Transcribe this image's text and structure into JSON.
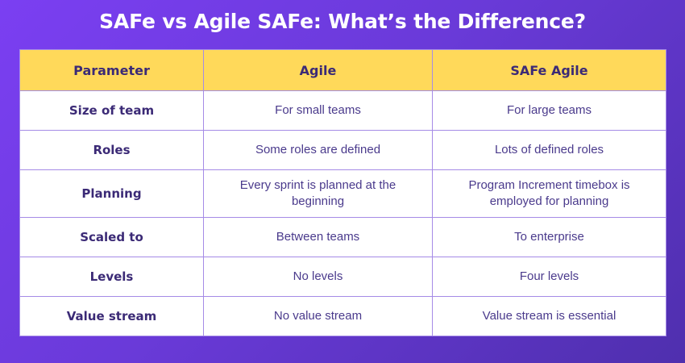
{
  "title": "SAFe vs Agile SAFe: What’s the Difference?",
  "table": {
    "headers": [
      "Parameter",
      "Agile",
      "SAFe Agile"
    ],
    "rows": [
      {
        "parameter": "Size of team",
        "agile": "For small teams",
        "safe_agile": "For large teams"
      },
      {
        "parameter": "Roles",
        "agile": "Some roles are defined",
        "safe_agile": "Lots of defined roles"
      },
      {
        "parameter": "Planning",
        "agile": "Every sprint is planned at the beginning",
        "safe_agile": "Program Increment timebox is employed for planning"
      },
      {
        "parameter": "Scaled to",
        "agile": "Between teams",
        "safe_agile": "To enterprise"
      },
      {
        "parameter": "Levels",
        "agile": "No levels",
        "safe_agile": "Four levels"
      },
      {
        "parameter": "Value stream",
        "agile": "No value stream",
        "safe_agile": "Value stream is essential"
      }
    ]
  },
  "colors": {
    "background": "#6a3ad9",
    "header_fill": "#ffd95a",
    "text": "#3b2a76"
  }
}
